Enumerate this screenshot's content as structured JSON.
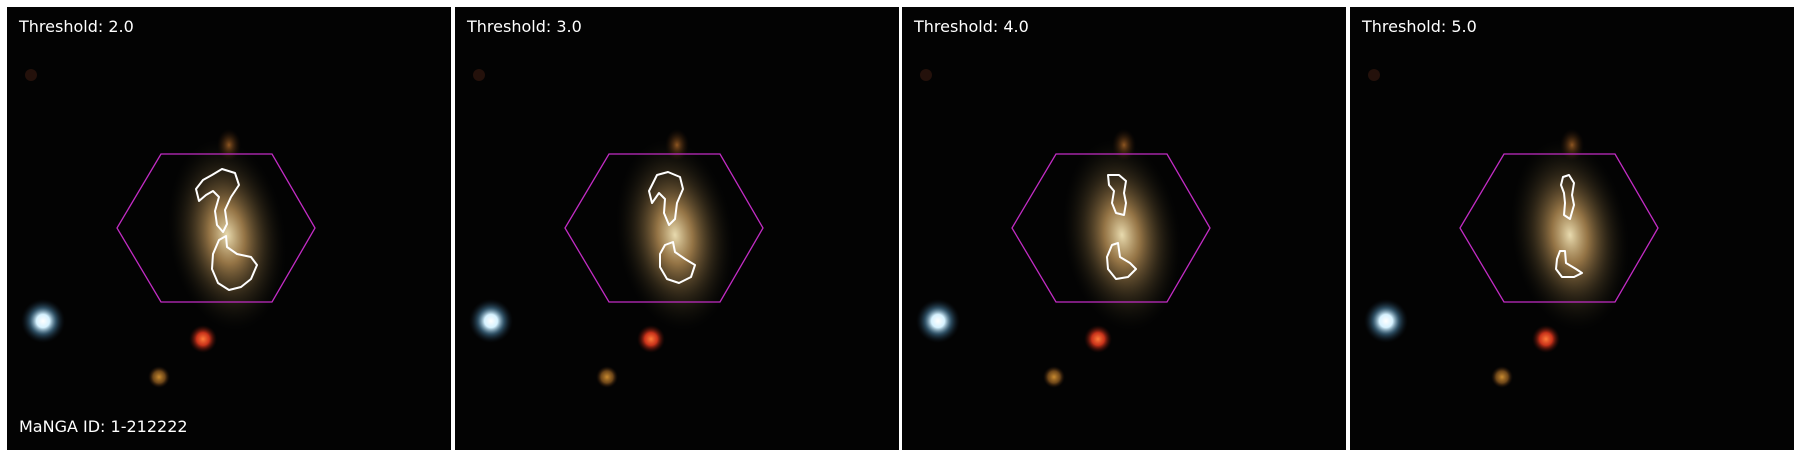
{
  "panels": [
    {
      "threshold_label": "Threshold: 2.0"
    },
    {
      "threshold_label": "Threshold: 3.0"
    },
    {
      "threshold_label": "Threshold: 4.0"
    },
    {
      "threshold_label": "Threshold: 5.0"
    }
  ],
  "manga_id_label": "MaNGA ID: 1-212222",
  "colors": {
    "background": "#030303",
    "hexagon": "#c22cc4",
    "contour": "#ffffff",
    "label_text": "#ffffff"
  }
}
